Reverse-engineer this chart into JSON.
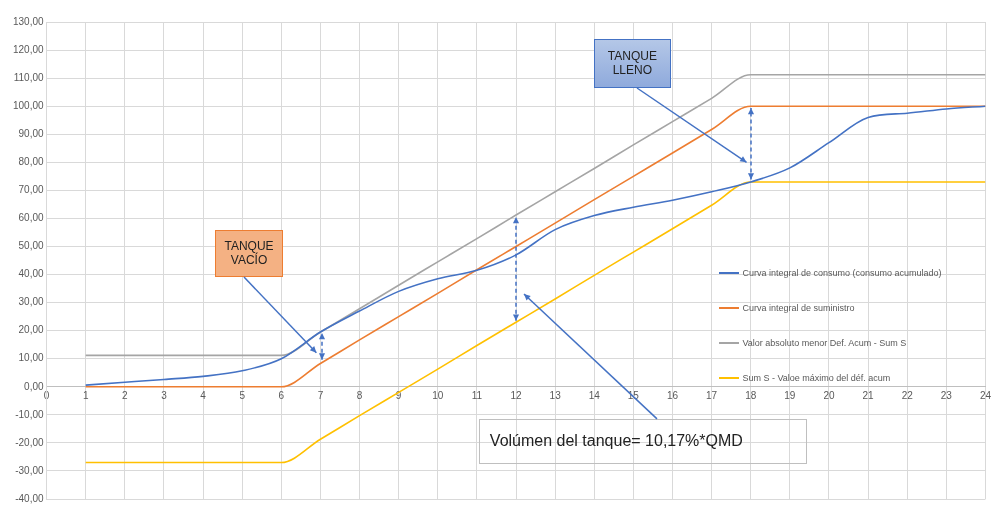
{
  "chart_data": {
    "type": "line",
    "annotations": [
      "TANQUE VACÍO",
      "TANQUE LLENO",
      "Volúmen del tanque= 10,17%*QMD"
    ],
    "x": [
      1,
      2,
      3,
      4,
      5,
      6,
      7,
      8,
      9,
      10,
      11,
      12,
      13,
      14,
      15,
      16,
      17,
      18,
      19,
      20,
      21,
      22,
      23,
      24
    ],
    "series": [
      {
        "name": "Curva integral de consumo (consumo acumulado)",
        "color": "#4472c4",
        "values": [
          0.6,
          1.6,
          2.6,
          3.7,
          5.7,
          10,
          19.5,
          27,
          34,
          38.5,
          41.5,
          47,
          56,
          61,
          64,
          66.5,
          69.5,
          73,
          78,
          87,
          96,
          97.5,
          99,
          100
        ]
      },
      {
        "name": "Curva integral de suministro",
        "color": "#ed7d31",
        "values": [
          0,
          0,
          0,
          0,
          0,
          0,
          8.3,
          16.7,
          25,
          33.3,
          41.7,
          50,
          58.3,
          66.7,
          75,
          83.3,
          91.7,
          100,
          100,
          100,
          100,
          100,
          100,
          100
        ]
      },
      {
        "name": "Valor absoluto menor Def. Acum - Sum S",
        "color": "#a5a5a5",
        "values": [
          11.2,
          11.2,
          11.2,
          11.2,
          11.2,
          11.2,
          19.5,
          27.8,
          36.2,
          44.5,
          52.8,
          61.2,
          69.5,
          77.8,
          86.2,
          94.5,
          102.8,
          111.2,
          111.2,
          111.2,
          111.2,
          111.2,
          111.2,
          111.2
        ]
      },
      {
        "name": "Sum S - Valoe máximo del déf. acum",
        "color": "#ffc000",
        "values": [
          -27,
          -27,
          -27,
          -27,
          -27,
          -27,
          -18.7,
          -10.3,
          -2,
          6.3,
          14.7,
          23,
          31.3,
          39.7,
          48,
          56.3,
          64.7,
          73,
          73,
          73,
          73,
          73,
          73,
          73
        ]
      }
    ],
    "xlim": [
      0,
      24
    ],
    "xticks": [
      0,
      1,
      2,
      3,
      4,
      5,
      6,
      7,
      8,
      9,
      10,
      11,
      12,
      13,
      14,
      15,
      16,
      17,
      18,
      19,
      20,
      21,
      22,
      23,
      24
    ],
    "ylim": [
      -40,
      130
    ],
    "yticks": [
      {
        "value": -40,
        "label": "-40,00"
      },
      {
        "value": -30,
        "label": "-30,00"
      },
      {
        "value": -20,
        "label": "-20,00"
      },
      {
        "value": -10,
        "label": "-10,00"
      },
      {
        "value": 0,
        "label": "0,00"
      },
      {
        "value": 10,
        "label": "10,00"
      },
      {
        "value": 20,
        "label": "20,00"
      },
      {
        "value": 30,
        "label": "30,00"
      },
      {
        "value": 40,
        "label": "40,00"
      },
      {
        "value": 50,
        "label": "50,00"
      },
      {
        "value": 60,
        "label": "60,00"
      },
      {
        "value": 70,
        "label": "70,00"
      },
      {
        "value": 80,
        "label": "80,00"
      },
      {
        "value": 90,
        "label": "90,00"
      },
      {
        "value": 100,
        "label": "100,00"
      },
      {
        "value": 110,
        "label": "110,00"
      },
      {
        "value": 120,
        "label": "120,00"
      },
      {
        "value": 130,
        "label": "130,00"
      }
    ],
    "grid": true,
    "legend": "right",
    "marker": "none",
    "line_style": "solid"
  }
}
